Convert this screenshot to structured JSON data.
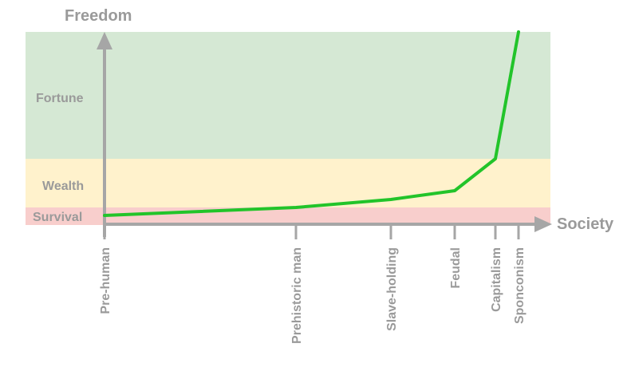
{
  "axes": {
    "y_title": "Freedom",
    "x_title": "Society"
  },
  "bands": [
    {
      "label": "Fortune",
      "color": "#d5e8d4"
    },
    {
      "label": "Wealth",
      "color": "#fff2cc"
    },
    {
      "label": "Survival",
      "color": "#f8cecc"
    }
  ],
  "stages": [
    {
      "label": "Pre-human"
    },
    {
      "label": "Prehistoric man"
    },
    {
      "label": "Slave-holding"
    },
    {
      "label": "Feudal"
    },
    {
      "label": "Capitalism"
    },
    {
      "label": "Sponconism"
    }
  ],
  "colors": {
    "axis": "#a6a6a6",
    "curve": "#22c42a",
    "text": "#9a9a9a"
  }
}
